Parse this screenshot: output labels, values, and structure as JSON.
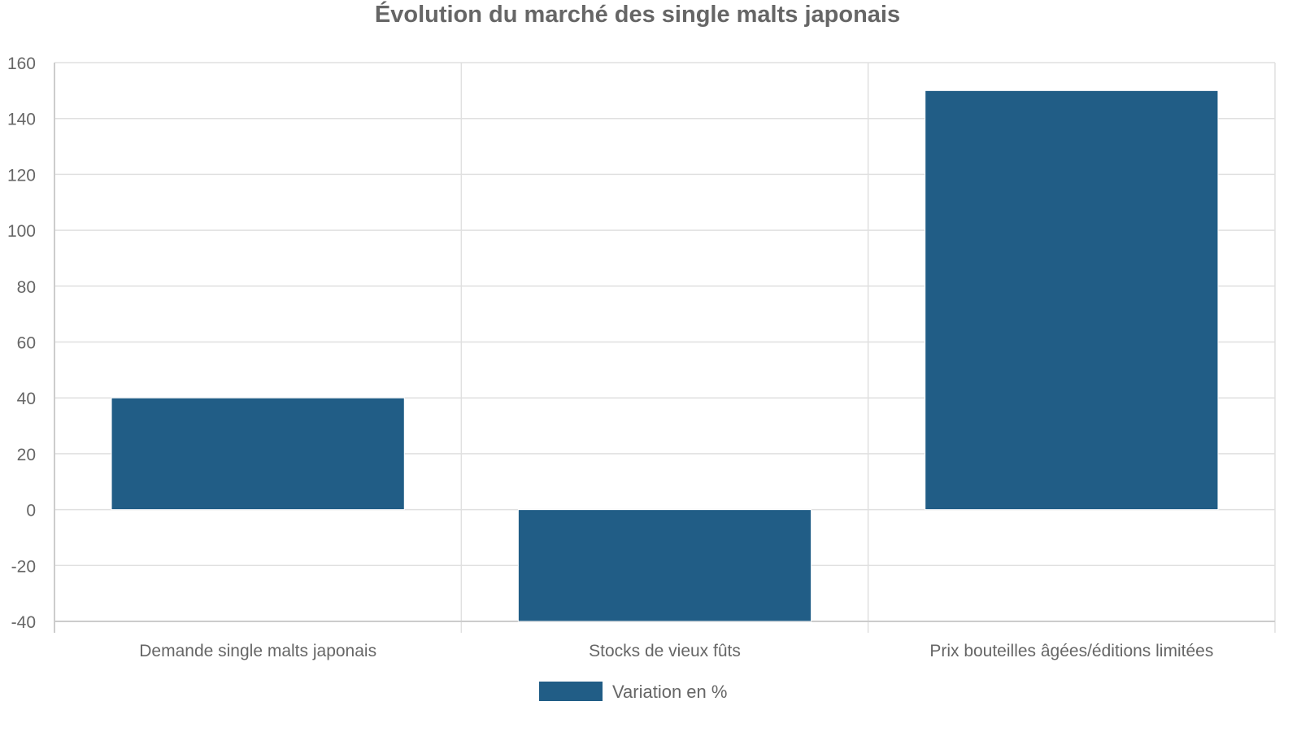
{
  "chart_data": {
    "type": "bar",
    "title": "Évolution du marché des single malts japonais",
    "categories": [
      "Demande single malts japonais",
      "Stocks de vieux fûts",
      "Prix bouteilles âgées/éditions limitées"
    ],
    "series": [
      {
        "name": "Variation en %",
        "values": [
          40,
          -40,
          150
        ],
        "color": "#215d86"
      }
    ],
    "ylim": [
      -40,
      160
    ],
    "yticks": [
      -40,
      -20,
      0,
      20,
      40,
      60,
      80,
      100,
      120,
      140,
      160
    ],
    "xlabel": "",
    "ylabel": "",
    "grid": true,
    "legend_position": "bottom-center"
  },
  "colors": {
    "text": "#666666",
    "grid": "#e0e0e0",
    "axis": "#cccccc"
  }
}
